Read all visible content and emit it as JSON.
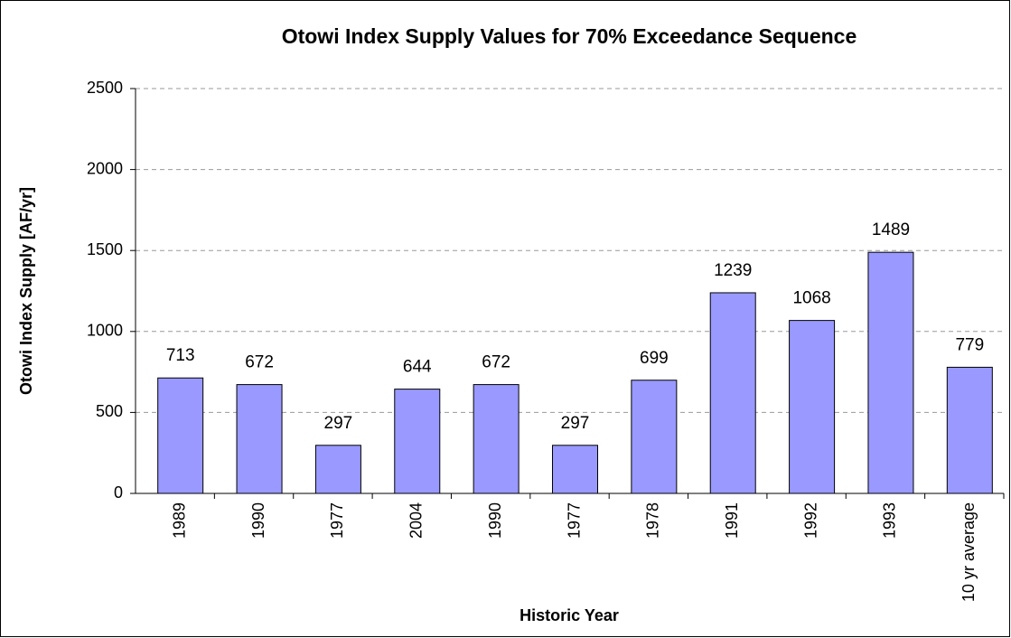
{
  "chart_data": {
    "type": "bar",
    "title": "Otowi Index Supply Values for 70% Exceedance Sequence",
    "x_label": "Historic Year",
    "y_label": "Otowi Index Supply [AF/yr]",
    "categories": [
      "1989",
      "1990",
      "1977",
      "2004",
      "1990",
      "1977",
      "1978",
      "1991",
      "1992",
      "1993",
      "10 yr average"
    ],
    "values": [
      713,
      672,
      297,
      644,
      672,
      297,
      699,
      1239,
      1068,
      1489,
      779
    ],
    "color": "#9999ff",
    "ylim": [
      0,
      2500
    ],
    "yticks": [
      0,
      500,
      1000,
      1500,
      2000,
      2500
    ],
    "grid": true
  }
}
